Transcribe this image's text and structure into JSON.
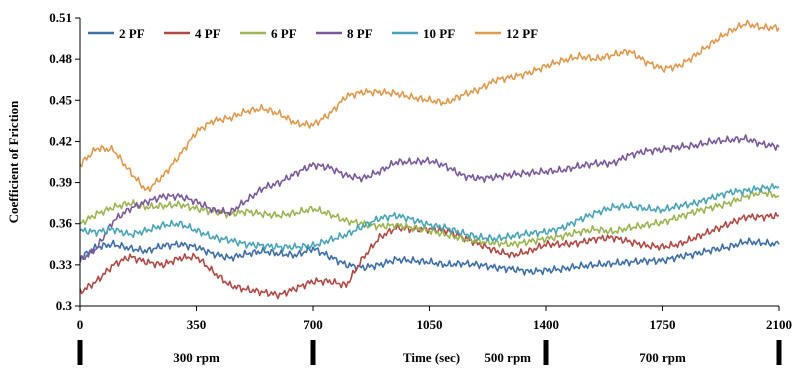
{
  "chart_data": {
    "type": "line",
    "xlabel": "Time (sec)",
    "ylabel": "Coefficient of Friction",
    "xlim": [
      0,
      2100
    ],
    "ylim": [
      0.3,
      0.51
    ],
    "xticks": [
      0,
      350,
      700,
      1050,
      1400,
      1750,
      2100
    ],
    "yticks": [
      0.3,
      0.33,
      0.36,
      0.39,
      0.42,
      0.45,
      0.48,
      0.51
    ],
    "xtick_labels": [
      "0",
      "350",
      "700",
      "1050",
      "1400",
      "1750",
      "2100"
    ],
    "ytick_labels": [
      "0.3",
      "0.33",
      "0.36",
      "0.39",
      "0.42",
      "0.45",
      "0.48",
      "0.51"
    ],
    "grid": false,
    "legend": "top-left",
    "speed_markers": [
      0,
      700,
      1400,
      2100
    ],
    "speed_labels": [
      {
        "text": "300 rpm",
        "x": 350
      },
      {
        "text": "500 rpm",
        "x": 1285
      },
      {
        "text": "700 rpm",
        "x": 1750
      }
    ],
    "series": [
      {
        "name": "2 PF",
        "color": "#3e6fa8",
        "x": [
          0,
          50,
          100,
          150,
          200,
          250,
          300,
          350,
          400,
          450,
          500,
          550,
          600,
          650,
          700,
          750,
          800,
          850,
          900,
          950,
          1000,
          1050,
          1100,
          1150,
          1200,
          1250,
          1300,
          1350,
          1400,
          1450,
          1500,
          1550,
          1600,
          1650,
          1700,
          1750,
          1800,
          1850,
          1900,
          1950,
          2000,
          2050,
          2100
        ],
        "values": [
          0.335,
          0.343,
          0.345,
          0.342,
          0.34,
          0.344,
          0.345,
          0.343,
          0.338,
          0.335,
          0.338,
          0.34,
          0.338,
          0.337,
          0.342,
          0.336,
          0.33,
          0.328,
          0.33,
          0.334,
          0.333,
          0.332,
          0.33,
          0.331,
          0.33,
          0.328,
          0.327,
          0.325,
          0.326,
          0.327,
          0.329,
          0.33,
          0.331,
          0.332,
          0.333,
          0.333,
          0.336,
          0.338,
          0.341,
          0.343,
          0.347,
          0.346,
          0.345
        ]
      },
      {
        "name": "4 PF",
        "color": "#b04a45",
        "x": [
          0,
          50,
          100,
          150,
          200,
          250,
          300,
          350,
          400,
          450,
          500,
          550,
          600,
          650,
          700,
          750,
          800,
          850,
          900,
          950,
          1000,
          1050,
          1100,
          1150,
          1200,
          1250,
          1300,
          1350,
          1400,
          1450,
          1500,
          1550,
          1600,
          1650,
          1700,
          1750,
          1800,
          1850,
          1900,
          1950,
          2000,
          2050,
          2100
        ],
        "values": [
          0.31,
          0.318,
          0.33,
          0.336,
          0.332,
          0.33,
          0.335,
          0.336,
          0.325,
          0.315,
          0.312,
          0.31,
          0.308,
          0.313,
          0.318,
          0.318,
          0.315,
          0.335,
          0.35,
          0.357,
          0.356,
          0.356,
          0.355,
          0.35,
          0.345,
          0.34,
          0.337,
          0.34,
          0.345,
          0.345,
          0.346,
          0.349,
          0.35,
          0.347,
          0.344,
          0.343,
          0.345,
          0.35,
          0.355,
          0.36,
          0.365,
          0.365,
          0.366
        ]
      },
      {
        "name": "6 PF",
        "color": "#9bb552",
        "x": [
          0,
          50,
          100,
          150,
          200,
          250,
          300,
          350,
          400,
          450,
          500,
          550,
          600,
          650,
          700,
          750,
          800,
          850,
          900,
          950,
          1000,
          1050,
          1100,
          1150,
          1200,
          1250,
          1300,
          1350,
          1400,
          1450,
          1500,
          1550,
          1600,
          1650,
          1700,
          1750,
          1800,
          1850,
          1900,
          1950,
          2000,
          2050,
          2100
        ],
        "values": [
          0.36,
          0.367,
          0.372,
          0.375,
          0.372,
          0.373,
          0.374,
          0.371,
          0.369,
          0.367,
          0.369,
          0.367,
          0.366,
          0.368,
          0.371,
          0.367,
          0.362,
          0.36,
          0.358,
          0.359,
          0.357,
          0.355,
          0.352,
          0.349,
          0.347,
          0.346,
          0.345,
          0.347,
          0.349,
          0.351,
          0.354,
          0.356,
          0.354,
          0.357,
          0.359,
          0.361,
          0.365,
          0.369,
          0.372,
          0.375,
          0.38,
          0.383,
          0.38
        ]
      },
      {
        "name": "8 PF",
        "color": "#7a5a9c",
        "x": [
          0,
          50,
          100,
          150,
          200,
          250,
          300,
          350,
          400,
          450,
          500,
          550,
          600,
          650,
          700,
          750,
          800,
          850,
          900,
          950,
          1000,
          1050,
          1100,
          1150,
          1200,
          1250,
          1300,
          1350,
          1400,
          1450,
          1500,
          1550,
          1600,
          1650,
          1700,
          1750,
          1800,
          1850,
          1900,
          1950,
          2000,
          2050,
          2100
        ],
        "values": [
          0.333,
          0.342,
          0.362,
          0.371,
          0.376,
          0.38,
          0.38,
          0.376,
          0.37,
          0.368,
          0.377,
          0.386,
          0.39,
          0.397,
          0.403,
          0.401,
          0.395,
          0.393,
          0.398,
          0.405,
          0.405,
          0.406,
          0.402,
          0.395,
          0.393,
          0.394,
          0.396,
          0.397,
          0.398,
          0.399,
          0.402,
          0.404,
          0.404,
          0.41,
          0.413,
          0.414,
          0.416,
          0.417,
          0.42,
          0.421,
          0.422,
          0.418,
          0.416
        ]
      },
      {
        "name": "10 PF",
        "color": "#4aa4b8",
        "x": [
          0,
          50,
          100,
          150,
          200,
          250,
          300,
          350,
          400,
          450,
          500,
          550,
          600,
          650,
          700,
          750,
          800,
          850,
          900,
          950,
          1000,
          1050,
          1100,
          1150,
          1200,
          1250,
          1300,
          1350,
          1400,
          1450,
          1500,
          1550,
          1600,
          1650,
          1700,
          1750,
          1800,
          1850,
          1900,
          1950,
          2000,
          2050,
          2100
        ],
        "values": [
          0.355,
          0.354,
          0.356,
          0.352,
          0.355,
          0.359,
          0.36,
          0.355,
          0.35,
          0.348,
          0.345,
          0.344,
          0.343,
          0.343,
          0.344,
          0.348,
          0.352,
          0.358,
          0.364,
          0.366,
          0.363,
          0.359,
          0.357,
          0.353,
          0.35,
          0.349,
          0.351,
          0.353,
          0.354,
          0.357,
          0.363,
          0.368,
          0.372,
          0.373,
          0.371,
          0.37,
          0.373,
          0.375,
          0.379,
          0.383,
          0.384,
          0.386,
          0.387
        ]
      },
      {
        "name": "12 PF",
        "color": "#e09a4e",
        "x": [
          0,
          50,
          100,
          150,
          200,
          250,
          300,
          350,
          400,
          450,
          500,
          550,
          600,
          650,
          700,
          750,
          800,
          850,
          900,
          950,
          1000,
          1050,
          1100,
          1150,
          1200,
          1250,
          1300,
          1350,
          1400,
          1450,
          1500,
          1550,
          1600,
          1650,
          1700,
          1750,
          1800,
          1850,
          1900,
          1950,
          2000,
          2050,
          2100
        ],
        "values": [
          0.403,
          0.415,
          0.414,
          0.398,
          0.384,
          0.395,
          0.41,
          0.427,
          0.435,
          0.437,
          0.442,
          0.444,
          0.44,
          0.433,
          0.432,
          0.44,
          0.453,
          0.456,
          0.456,
          0.455,
          0.452,
          0.45,
          0.448,
          0.454,
          0.458,
          0.465,
          0.467,
          0.47,
          0.475,
          0.479,
          0.482,
          0.48,
          0.483,
          0.486,
          0.478,
          0.473,
          0.475,
          0.483,
          0.492,
          0.5,
          0.506,
          0.503,
          0.503
        ]
      }
    ]
  }
}
